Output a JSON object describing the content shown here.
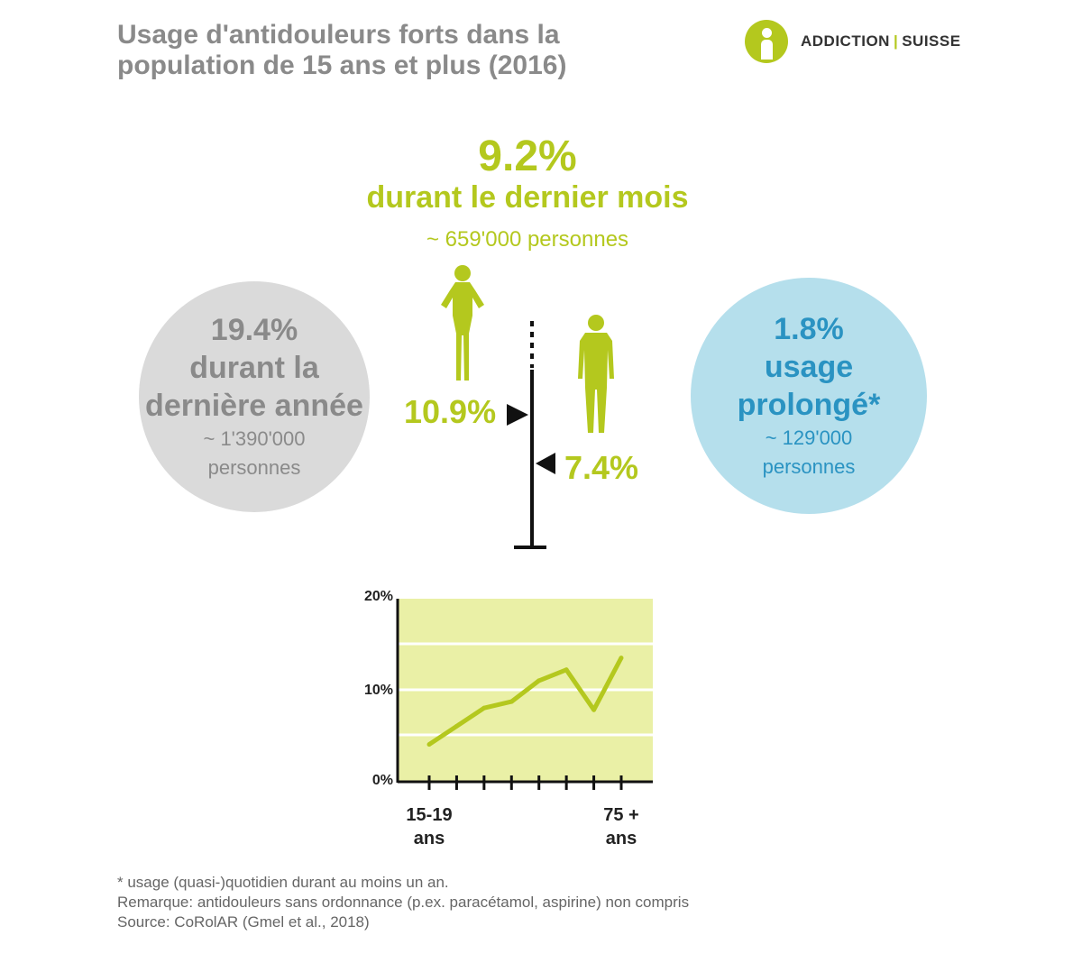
{
  "header": {
    "title_line1": "Usage d'antidouleurs forts dans la",
    "title_line2": "population de 15 ans et plus (2016)"
  },
  "logo": {
    "text_left": "ADDICTION",
    "separator": "|",
    "text_right": "SUISSE",
    "color": "#b4c81e"
  },
  "month_stat": {
    "percent": "9.2%",
    "label": "durant le dernier mois",
    "people": "~ 659'000 personnes"
  },
  "year_stat": {
    "percent": "19.4%",
    "label_line1": "durant la",
    "label_line2": "dernière année",
    "people_line1": "~ 1'390'000",
    "people_line2": "personnes"
  },
  "prolonged_stat": {
    "percent": "1.8%",
    "label_line1": "usage",
    "label_line2": "prolongé*",
    "people_line1": "~ 129'000",
    "people_line2": "personnes"
  },
  "gender": {
    "female_percent": "10.9%",
    "male_percent": "7.4%",
    "female_icon": "woman-icon",
    "male_icon": "man-icon"
  },
  "colors": {
    "accent_green": "#b4c81e",
    "grey_circle": "#dadada",
    "blue_circle": "#b5dfec",
    "blue_text": "#2a93c2",
    "chart_background": "#eaf0a6"
  },
  "chart_data": {
    "type": "line",
    "ytick_labels": [
      "0%",
      "10%",
      "20%"
    ],
    "ylim": [
      0,
      20
    ],
    "grid": true,
    "x_first_label_line1": "15-19",
    "x_first_label_line2": "ans",
    "x_last_label_line1": "75 +",
    "x_last_label_line2": "ans",
    "values": [
      4,
      6,
      8,
      8.7,
      11,
      12.2,
      7.8,
      13.5
    ]
  },
  "footnotes": {
    "note1": "* usage (quasi-)quotidien durant au moins un an.",
    "note2": "Remarque: antidouleurs sans ordonnance (p.ex. paracétamol, aspirine) non compris",
    "note3": "Source: CoRolAR (Gmel et al., 2018)"
  }
}
